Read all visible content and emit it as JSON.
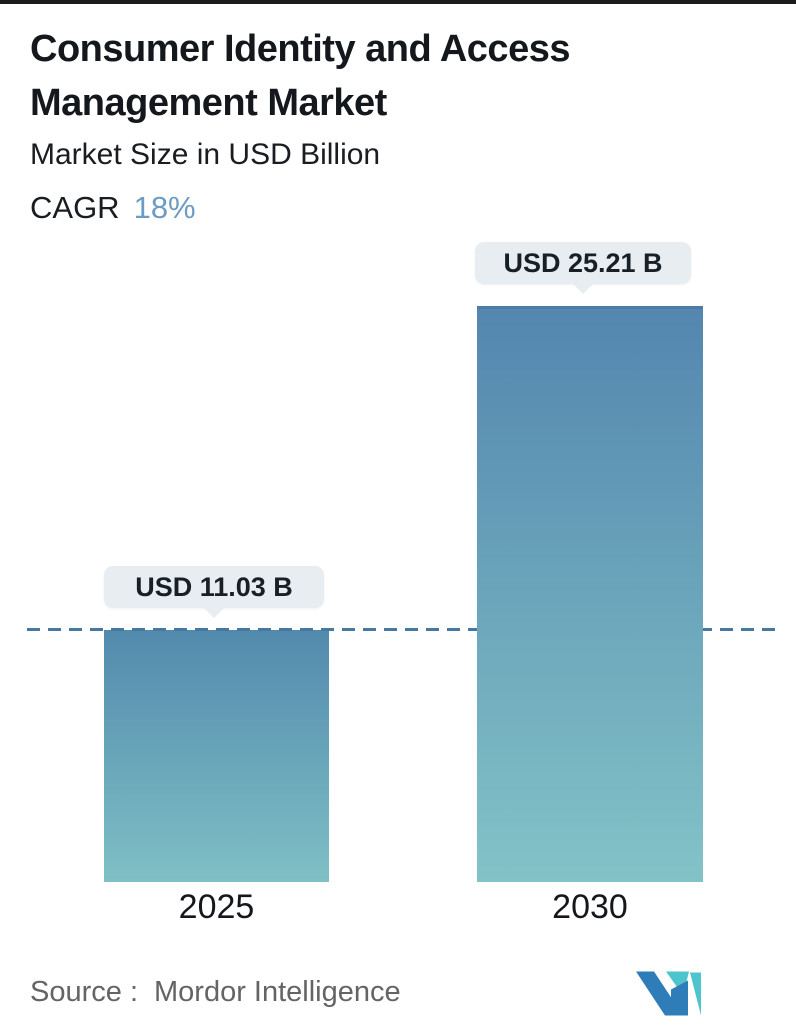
{
  "header": {
    "title_line1": "Consumer Identity and Access",
    "title_line2": "Management Market",
    "subtitle": "Market Size in USD Billion",
    "cagr_label": "CAGR",
    "cagr_value": "18%"
  },
  "chart_data": {
    "type": "bar",
    "title": "Consumer Identity and Access Management Market",
    "subtitle": "Market Size in USD Billion",
    "cagr_pct": 18,
    "categories": [
      "2025",
      "2030"
    ],
    "values": [
      11.03,
      25.21
    ],
    "value_labels": [
      "USD 11.03 B",
      "USD 25.21 B"
    ],
    "unit": "USD Billion",
    "xlabel": "",
    "ylabel": "",
    "ylim": [
      0,
      26
    ],
    "grid": false,
    "legend": "none",
    "bar_gradient_top": "#5487b0",
    "bar_gradient_bottom": "#81c2c6",
    "reference_line": {
      "style": "dashed",
      "value": 11.03,
      "color": "#46799f"
    }
  },
  "footer": {
    "source_label": "Source :",
    "source_value": "Mordor Intelligence",
    "logo": "mordor-intelligence-logo"
  },
  "colors": {
    "accent_blue": "#6c9bc4",
    "text_dark": "#14181c",
    "bubble_bg": "#e7edf0",
    "dashed_line": "#46799f",
    "source_gray": "#646464",
    "logo_blue": "#2f7db8",
    "logo_teal": "#4ec4cd"
  }
}
